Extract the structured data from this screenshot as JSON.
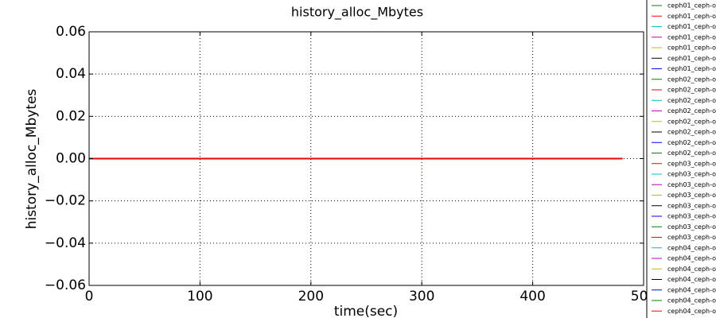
{
  "chart_data": {
    "type": "line",
    "title": "history_alloc_Mbytes",
    "x_label": "time(sec)",
    "y_label": "history_alloc_Mbytes",
    "x": [
      0,
      481
    ],
    "xlim": [
      0,
      500
    ],
    "xticks": [
      0,
      100,
      200,
      300,
      400,
      500
    ],
    "ylim": [
      -0.06,
      0.06
    ],
    "yticks": [
      0.06,
      0.04,
      0.02,
      {
        "value": 0,
        "label": "0.00"
      },
      {
        "value": -0.02,
        "label": "−0.02"
      },
      {
        "value": -0.04,
        "label": "−0.04"
      },
      {
        "value": -0.06,
        "label": "−0.06"
      }
    ],
    "grid": true,
    "legend": "right",
    "series": [
      {
        "name": "ceph01_ceph-o",
        "color": "#008000",
        "values": [
          0,
          0
        ]
      },
      {
        "name": "ceph01_ceph-o",
        "color": "#ff0000",
        "values": [
          0,
          0
        ]
      },
      {
        "name": "ceph01_ceph-o",
        "color": "#00bfbf",
        "values": [
          0,
          0
        ]
      },
      {
        "name": "ceph01_ceph-o",
        "color": "#bf00bf",
        "values": [
          0,
          0
        ]
      },
      {
        "name": "ceph01_ceph-o",
        "color": "#bfbf00",
        "values": [
          0,
          0
        ]
      },
      {
        "name": "ceph01_ceph-o",
        "color": "#000000",
        "values": [
          0,
          0
        ]
      },
      {
        "name": "ceph01_ceph-o",
        "color": "#0000ff",
        "values": [
          0,
          0
        ]
      },
      {
        "name": "ceph02_ceph-o",
        "color": "#008000",
        "values": [
          0,
          0
        ]
      },
      {
        "name": "ceph02_ceph-o",
        "color": "#ff0000",
        "values": [
          0,
          0
        ]
      },
      {
        "name": "ceph02_ceph-o",
        "color": "#00bfbf",
        "values": [
          0,
          0
        ]
      },
      {
        "name": "ceph02_ceph-o",
        "color": "#bf00bf",
        "values": [
          0,
          0
        ]
      },
      {
        "name": "ceph02_ceph-o",
        "color": "#bfbf00",
        "values": [
          0,
          0
        ]
      },
      {
        "name": "ceph02_ceph-o",
        "color": "#000000",
        "values": [
          0,
          0
        ]
      },
      {
        "name": "ceph02_ceph-o",
        "color": "#0000ff",
        "values": [
          0,
          0
        ]
      },
      {
        "name": "ceph02_ceph-o",
        "color": "#008000",
        "values": [
          0,
          0
        ]
      },
      {
        "name": "ceph03_ceph-o",
        "color": "#ff0000",
        "values": [
          0,
          0
        ]
      },
      {
        "name": "ceph03_ceph-o",
        "color": "#00bfbf",
        "values": [
          0,
          0
        ]
      },
      {
        "name": "ceph03_ceph-o",
        "color": "#bf00bf",
        "values": [
          0,
          0
        ]
      },
      {
        "name": "ceph03_ceph-o",
        "color": "#bfbf00",
        "values": [
          0,
          0
        ]
      },
      {
        "name": "ceph03_ceph-o",
        "color": "#000000",
        "values": [
          0,
          0
        ]
      },
      {
        "name": "ceph03_ceph-o",
        "color": "#0000ff",
        "values": [
          0,
          0
        ]
      },
      {
        "name": "ceph03_ceph-o",
        "color": "#008000",
        "values": [
          0,
          0
        ]
      },
      {
        "name": "ceph03_ceph-o",
        "color": "#ff0000",
        "values": [
          0,
          0
        ]
      },
      {
        "name": "ceph04_ceph-o",
        "color": "#00bfbf",
        "values": [
          0,
          0
        ]
      },
      {
        "name": "ceph04_ceph-o",
        "color": "#bf00bf",
        "values": [
          0,
          0
        ]
      },
      {
        "name": "ceph04_ceph-o",
        "color": "#bfbf00",
        "values": [
          0,
          0
        ]
      },
      {
        "name": "ceph04_ceph-o",
        "color": "#000000",
        "values": [
          0,
          0
        ]
      },
      {
        "name": "ceph04_ceph-o",
        "color": "#0000ff",
        "values": [
          0,
          0
        ]
      },
      {
        "name": "ceph04_ceph-o",
        "color": "#008000",
        "values": [
          0,
          0
        ]
      },
      {
        "name": "ceph04_ceph-o",
        "color": "#ff0000",
        "values": [
          0,
          0
        ]
      }
    ]
  }
}
